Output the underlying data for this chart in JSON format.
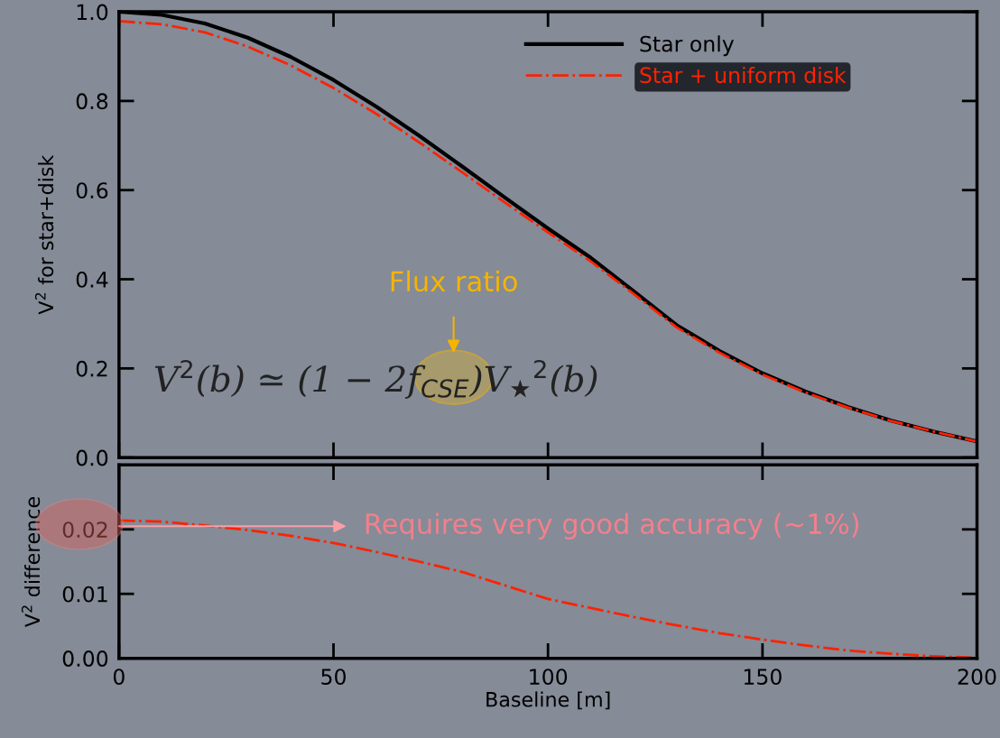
{
  "chart_data": [
    {
      "type": "line",
      "ylabel": "V$^{2}$ for star+disk",
      "x": [
        0,
        10,
        20,
        30,
        40,
        50,
        60,
        70,
        80,
        90,
        100,
        110,
        120,
        130,
        140,
        150,
        160,
        170,
        180,
        190,
        200
      ],
      "series": [
        {
          "name": "Star only",
          "color": "#000000",
          "line_style": "solid",
          "values": [
            1.0,
            0.993,
            0.974,
            0.942,
            0.899,
            0.847,
            0.787,
            0.722,
            0.653,
            0.583,
            0.514,
            0.448,
            0.373,
            0.297,
            0.239,
            0.189,
            0.148,
            0.113,
            0.083,
            0.058,
            0.036
          ]
        },
        {
          "name": "Star + uniform disk",
          "color": "#ff2200",
          "line_style": "dashdot",
          "values": [
            0.979,
            0.972,
            0.954,
            0.922,
            0.88,
            0.829,
            0.771,
            0.707,
            0.64,
            0.572,
            0.505,
            0.44,
            0.367,
            0.292,
            0.235,
            0.186,
            0.146,
            0.112,
            0.082,
            0.058,
            0.036
          ]
        }
      ],
      "xlim": [
        0,
        200
      ],
      "xticks": [
        0,
        50,
        100,
        150,
        200
      ],
      "ylim": [
        0,
        1.0
      ],
      "yticks": [
        {
          "value": 0,
          "label": "0.0"
        },
        {
          "value": 0.2,
          "label": "0.2"
        },
        {
          "value": 0.4,
          "label": "0.4"
        },
        {
          "value": 0.6,
          "label": "0.6"
        },
        {
          "value": 0.8,
          "label": "0.8"
        },
        {
          "value": 1.0,
          "label": "1.0"
        }
      ],
      "tick_labels": "y",
      "legend": "top right",
      "grid": false,
      "annotations": [
        "Flux ratio",
        "V$^{2}$(b) ≃ (1 − 2f$_{CSE}$)V$_{★}$$^{2}$(b)"
      ]
    },
    {
      "type": "line",
      "xlabel": "Baseline [m]",
      "ylabel": "V$^{2}$ difference",
      "x": [
        0,
        10,
        20,
        30,
        40,
        50,
        60,
        70,
        80,
        90,
        100,
        110,
        120,
        130,
        140,
        150,
        160,
        170,
        180,
        190,
        200
      ],
      "series": [
        {
          "color": "#ff2200",
          "line_style": "dashdot",
          "values": [
            0.0214,
            0.0212,
            0.0206,
            0.0199,
            0.019,
            0.0179,
            0.0165,
            0.015,
            0.0134,
            0.0113,
            0.0092,
            0.0078,
            0.0064,
            0.0051,
            0.0039,
            0.0029,
            0.002,
            0.0012,
            0.0007,
            0.0003,
            0.0001
          ]
        }
      ],
      "xlim": [
        0,
        200
      ],
      "xticks": [
        0,
        50,
        100,
        150,
        200
      ],
      "ylim": [
        0,
        0.03
      ],
      "yticks": [
        {
          "value": 0,
          "label": "0.00"
        },
        {
          "value": 0.01,
          "label": "0.01"
        },
        {
          "value": 0.02,
          "label": "0.02"
        }
      ],
      "grid": false,
      "annotations": [
        "Requires very good accuracy (~1%)"
      ]
    }
  ]
}
